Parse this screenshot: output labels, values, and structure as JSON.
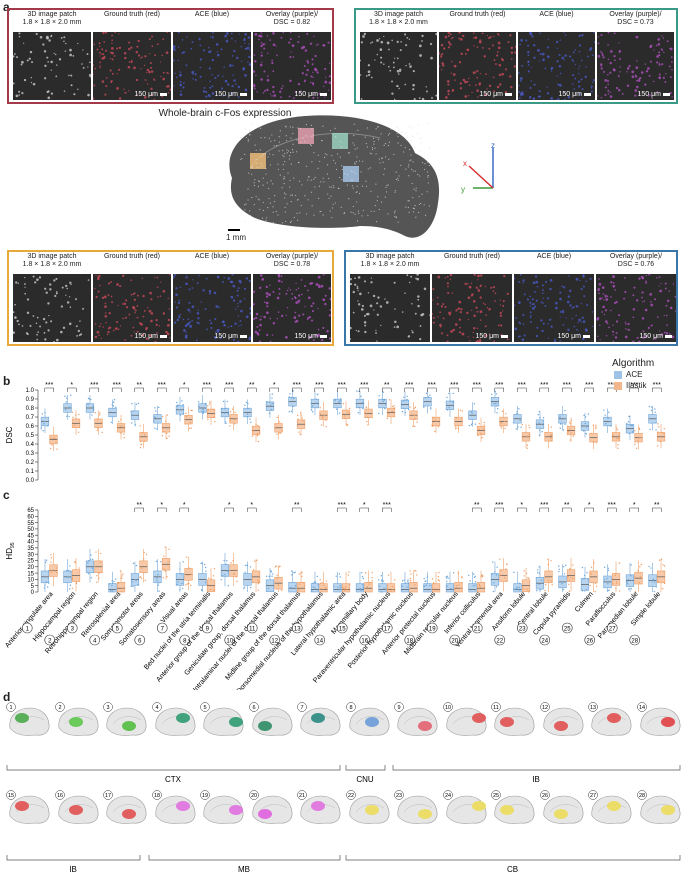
{
  "panels": {
    "a": "a",
    "b": "b",
    "c": "c",
    "d": "d"
  },
  "panel_a": {
    "title": "Whole-brain c-Fos expression",
    "scalebar_brain": "1 mm",
    "axes": {
      "x": "x",
      "y": "y",
      "z": "z"
    },
    "insets": [
      {
        "color": "#a33a4a",
        "patch": "3D image patch",
        "dims": "1.8 × 1.8 × 2.0 mm",
        "gt": "Ground truth (red)",
        "ace": "ACE (blue)",
        "overlay": "Overlay (purple)/",
        "dsc": "DSC = 0.82",
        "scale": "150 μm"
      },
      {
        "color": "#3a9a86",
        "patch": "3D image patch",
        "dims": "1.8 × 1.8 × 2.0 mm",
        "gt": "Ground truth (red)",
        "ace": "ACE (blue)",
        "overlay": "Overlay (purple)/",
        "dsc": "DSC = 0.73",
        "scale": "150 μm"
      },
      {
        "color": "#e6a93a",
        "patch": "3D image patch",
        "dims": "1.8 × 1.8 × 2.0 mm",
        "gt": "Ground truth (red)",
        "ace": "ACE (blue)",
        "overlay": "Overlay (purple)/",
        "dsc": "DSC = 0.78",
        "scale": "150 μm"
      },
      {
        "color": "#3b76a8",
        "patch": "3D image patch",
        "dims": "1.8 × 1.8 × 2.0 mm",
        "gt": "Ground truth (red)",
        "ace": "ACE (blue)",
        "overlay": "Overlay (purple)/",
        "dsc": "DSC = 0.76",
        "scale": "150 μm"
      }
    ]
  },
  "chart_data": [
    {
      "type": "box",
      "ylabel": "DSC",
      "ylim": [
        0.0,
        1.0
      ],
      "yticks": [
        "0.0",
        "0.1",
        "0.2",
        "0.3",
        "0.4",
        "0.5",
        "0.6",
        "0.7",
        "0.8",
        "0.9",
        "1.0"
      ],
      "legend_title": "Algorithm",
      "legend": [
        {
          "name": "ACE",
          "color": "#9fc3e6"
        },
        {
          "name": "Ilastik",
          "color": "#f2b58c"
        }
      ],
      "series": [
        {
          "name": "ACE",
          "medians": [
            0.65,
            0.8,
            0.8,
            0.75,
            0.72,
            0.68,
            0.78,
            0.8,
            0.75,
            0.75,
            0.82,
            0.87,
            0.85,
            0.85,
            0.85,
            0.85,
            0.84,
            0.87,
            0.83,
            0.72,
            0.87,
            0.68,
            0.62,
            0.68,
            0.6,
            0.65,
            0.57,
            0.68
          ]
        },
        {
          "name": "Ilastik",
          "medians": [
            0.45,
            0.63,
            0.63,
            0.58,
            0.48,
            0.58,
            0.67,
            0.74,
            0.68,
            0.55,
            0.58,
            0.62,
            0.72,
            0.73,
            0.74,
            0.75,
            0.72,
            0.65,
            0.65,
            0.55,
            0.65,
            0.48,
            0.48,
            0.55,
            0.47,
            0.48,
            0.47,
            0.48
          ]
        }
      ],
      "significance": [
        "***",
        "*",
        "***",
        "***",
        "**",
        "***",
        "*",
        "***",
        "***",
        "**",
        "*",
        "***",
        "***",
        "***",
        "***",
        "**",
        "***",
        "***",
        "***",
        "***",
        "***",
        "***",
        "***",
        "***",
        "***",
        "***",
        "***",
        "***"
      ]
    },
    {
      "type": "box",
      "ylabel": "HD",
      "ylabel_sub": "95",
      "ylim": [
        0,
        65
      ],
      "yticks": [
        "0",
        "5",
        "10",
        "15",
        "20",
        "25",
        "30",
        "35",
        "40",
        "45",
        "50",
        "55",
        "60",
        "65"
      ],
      "series": [
        {
          "name": "ACE",
          "medians": [
            12,
            12,
            20,
            2,
            10,
            12,
            10,
            10,
            17,
            10,
            5,
            3,
            2,
            2,
            2,
            2,
            2,
            2,
            2,
            2,
            10,
            2,
            7,
            8,
            6,
            8,
            9,
            9
          ]
        },
        {
          "name": "Ilastik",
          "medians": [
            17,
            13,
            20,
            3,
            20,
            22,
            14,
            5,
            17,
            12,
            7,
            3,
            2,
            2,
            3,
            2,
            3,
            2,
            3,
            3,
            13,
            5,
            12,
            13,
            12,
            10,
            11,
            12
          ]
        }
      ],
      "significance": [
        "",
        "",
        "",
        "",
        "**",
        "*",
        "*",
        "",
        "*",
        "*",
        "",
        "**",
        "",
        "***",
        "*",
        "***",
        "",
        "",
        "",
        "**",
        "***",
        "*",
        "***",
        "**",
        "*",
        "***",
        "*",
        "**"
      ]
    }
  ],
  "regions": [
    {
      "num": "1",
      "name": "Anterior cingulate area"
    },
    {
      "num": "2",
      "name": "Hippocampal region"
    },
    {
      "num": "3",
      "name": "Retrohippocampal region"
    },
    {
      "num": "4",
      "name": "Retrosplenial area"
    },
    {
      "num": "5",
      "name": "Somatomotor areas"
    },
    {
      "num": "6",
      "name": "Somatosensory areas"
    },
    {
      "num": "7",
      "name": "Visual areas"
    },
    {
      "num": "8",
      "name": "Bed nuclei of the stria terminalis"
    },
    {
      "num": "9",
      "name": "Anterior group of the dorsal thalamus"
    },
    {
      "num": "10",
      "name": "Geniculate group, dorsal thalamus"
    },
    {
      "num": "11",
      "name": "Intralaminar nuclei of the dorsal thalamus"
    },
    {
      "num": "12",
      "name": "Midline group of the dorsal thalamus"
    },
    {
      "num": "13",
      "name": "Dorsomedial nucleus of the hypothalamus"
    },
    {
      "num": "14",
      "name": "Lateral hypothalamic area"
    },
    {
      "num": "15",
      "name": "Mammillary body"
    },
    {
      "num": "16",
      "name": "Paraventricular hypothalamic nucleus"
    },
    {
      "num": "17",
      "name": "Posterior hypothalamic nucleus"
    },
    {
      "num": "18",
      "name": "Anterior pretectal nucleus"
    },
    {
      "num": "19",
      "name": "Midbrain reticular nucleus"
    },
    {
      "num": "20",
      "name": "Inferior colliculus"
    },
    {
      "num": "21",
      "name": "Ventral tegmental area"
    },
    {
      "num": "22",
      "name": "Ansiform lobule"
    },
    {
      "num": "23",
      "name": "Central lobule"
    },
    {
      "num": "24",
      "name": "Copula pyramidis"
    },
    {
      "num": "25",
      "name": "Culmen"
    },
    {
      "num": "26",
      "name": "Paraflocculus"
    },
    {
      "num": "27",
      "name": "Paramedian lobule"
    },
    {
      "num": "28",
      "name": "Simple lobule"
    }
  ],
  "panel_d": {
    "groups": [
      {
        "label": "CTX",
        "color": "#3aa55a"
      },
      {
        "label": "CNU",
        "color": "#6a9ad8"
      },
      {
        "label": "IB",
        "color": "#e05050"
      },
      {
        "label": "IB",
        "color": "#e05050"
      },
      {
        "label": "MB",
        "color": "#d860d8"
      },
      {
        "label": "CB",
        "color": "#e8d84a"
      }
    ],
    "row1": [
      "1",
      "2",
      "3",
      "4",
      "5",
      "6",
      "7",
      "8",
      "9",
      "10",
      "11",
      "12",
      "13",
      "14"
    ],
    "row2": [
      "15",
      "16",
      "17",
      "18",
      "19",
      "20",
      "21",
      "22",
      "23",
      "24",
      "25",
      "26",
      "27",
      "28"
    ],
    "row1_colors": [
      "#4aa84a",
      "#5cc64a",
      "#52bd40",
      "#2f9a72",
      "#2f9a72",
      "#2e8c64",
      "#2a8a82",
      "#6a9ad8",
      "#e26070",
      "#e05050",
      "#e05050",
      "#e05050",
      "#e05050",
      "#e04040"
    ],
    "row2_colors": [
      "#e05050",
      "#e05050",
      "#e05050",
      "#e070e0",
      "#e070e0",
      "#e060e0",
      "#e070e0",
      "#ecdc5a",
      "#ecdc5a",
      "#ecdc5a",
      "#ecdc5a",
      "#ecdc5a",
      "#ecdc5a",
      "#ecdc5a"
    ]
  }
}
